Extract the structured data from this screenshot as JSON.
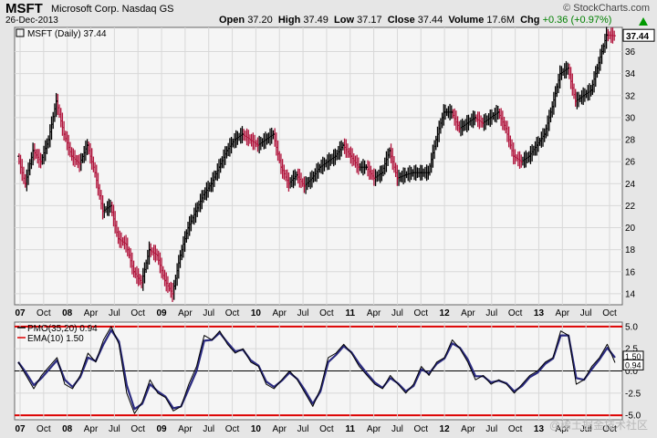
{
  "header": {
    "symbol": "MSFT",
    "company": "Microsoft Corp. Nasdaq GS",
    "date": "26-Dec-2013",
    "brand": "© StockCharts.com",
    "open_label": "Open",
    "open": "37.20",
    "high_label": "High",
    "high": "37.49",
    "low_label": "Low",
    "low": "37.17",
    "close_label": "Close",
    "close": "37.44",
    "volume_label": "Volume",
    "volume": "17.6M",
    "chg_label": "Chg",
    "chg": "+0.36 (+0.97%)"
  },
  "watermark": "@稀土掘金技术社区",
  "colors": {
    "up": "#000000",
    "down": "#b0143c",
    "pmo": "#000000",
    "signal": "#2a2a80",
    "ref": "#dd0000",
    "last_label_bg": "#ffffff"
  },
  "chart_data": [
    {
      "type": "line",
      "title": "MSFT (Daily) 37.44",
      "ylabel": "",
      "ylim": [
        13,
        38.2
      ],
      "ticks_y": [
        14,
        16,
        18,
        20,
        22,
        24,
        26,
        28,
        30,
        32,
        34,
        36
      ],
      "x_tick_labels": [
        "07",
        "Oct",
        "08",
        "Apr",
        "Jul",
        "Oct",
        "09",
        "Apr",
        "Jul",
        "Oct",
        "10",
        "Apr",
        "Jul",
        "Oct",
        "11",
        "Apr",
        "Jul",
        "Oct",
        "12",
        "Apr",
        "Jul",
        "Oct",
        "13",
        "Apr",
        "Jul",
        "Oct"
      ],
      "last_value_label": "37.44",
      "series": [
        {
          "x": [
            "2007-07",
            "2007-08",
            "2007-09",
            "2007-10",
            "2007-11",
            "2007-12",
            "2008-01",
            "2008-02",
            "2008-03",
            "2008-04",
            "2008-05",
            "2008-06",
            "2008-07",
            "2008-08",
            "2008-09",
            "2008-10",
            "2008-11",
            "2008-12",
            "2009-01",
            "2009-02",
            "2009-03",
            "2009-04",
            "2009-05",
            "2009-06",
            "2009-07",
            "2009-08",
            "2009-09",
            "2009-10",
            "2009-11",
            "2009-12",
            "2010-01",
            "2010-02",
            "2010-03",
            "2010-04",
            "2010-05",
            "2010-06",
            "2010-07",
            "2010-08",
            "2010-09",
            "2010-10",
            "2010-11",
            "2010-12",
            "2011-01",
            "2011-02",
            "2011-03",
            "2011-04",
            "2011-05",
            "2011-06",
            "2011-07",
            "2011-08",
            "2011-09",
            "2011-10",
            "2011-11",
            "2011-12",
            "2012-01",
            "2012-02",
            "2012-03",
            "2012-04",
            "2012-05",
            "2012-06",
            "2012-07",
            "2012-08",
            "2012-09",
            "2012-10",
            "2012-11",
            "2012-12",
            "2013-01",
            "2013-02",
            "2013-03",
            "2013-04",
            "2013-05",
            "2013-06",
            "2013-07",
            "2013-08",
            "2013-09",
            "2013-10",
            "2013-11",
            "2013-12"
          ],
          "values": [
            26.5,
            24.0,
            27.0,
            26.0,
            28.0,
            31.5,
            28.5,
            26.5,
            25.8,
            27.5,
            25.0,
            21.5,
            22.0,
            19.0,
            18.5,
            16.0,
            15.0,
            18.0,
            17.5,
            15.2,
            14.0,
            17.5,
            20.0,
            21.5,
            23.0,
            24.0,
            25.5,
            27.0,
            28.0,
            28.5,
            28.0,
            27.5,
            28.0,
            28.5,
            25.5,
            24.0,
            24.8,
            23.8,
            24.5,
            25.5,
            26.0,
            26.5,
            27.5,
            26.5,
            25.5,
            25.5,
            24.5,
            25.0,
            27.0,
            24.5,
            24.8,
            25.0,
            25.0,
            25.0,
            28.0,
            30.5,
            30.5,
            29.0,
            29.5,
            30.0,
            29.5,
            30.0,
            30.5,
            29.0,
            26.5,
            26.0,
            26.5,
            27.5,
            28.5,
            31.0,
            34.0,
            34.5,
            31.5,
            32.0,
            32.5,
            35.0,
            37.5,
            37.44
          ]
        }
      ]
    },
    {
      "type": "line",
      "title": "PMO(35,20) 0.94",
      "ylim": [
        -5.5,
        5.5
      ],
      "ticks_y": [
        -5.0,
        -2.5,
        0.0,
        2.5,
        5.0
      ],
      "ref_lines": [
        5.0,
        0.0,
        -5.0
      ],
      "x_tick_labels": [
        "07",
        "Oct",
        "08",
        "Apr",
        "Jul",
        "Oct",
        "09",
        "Apr",
        "Jul",
        "Oct",
        "10",
        "Apr",
        "Jul",
        "Oct",
        "11",
        "Apr",
        "Jul",
        "Oct",
        "12",
        "Apr",
        "Jul",
        "Oct",
        "13",
        "Apr",
        "Jul",
        "Oct"
      ],
      "last_value_labels": [
        "1.50",
        "0.94"
      ],
      "series": [
        {
          "name": "PMO(35,20) 0.94",
          "values": [
            1.0,
            -0.5,
            -2.0,
            -0.5,
            0.5,
            1.5,
            -1.5,
            -2.0,
            -0.5,
            2.0,
            1.0,
            3.5,
            5.0,
            3.0,
            -2.5,
            -4.8,
            -3.5,
            -1.0,
            -2.5,
            -3.0,
            -4.5,
            -4.0,
            -1.5,
            0.5,
            4.0,
            3.5,
            4.5,
            3.0,
            2.0,
            2.5,
            1.0,
            0.5,
            -1.5,
            -2.0,
            -1.0,
            0.0,
            -1.0,
            -2.5,
            -4.0,
            -2.0,
            1.5,
            2.0,
            3.0,
            2.0,
            0.5,
            -0.5,
            -1.5,
            -2.0,
            -0.5,
            -1.5,
            -2.5,
            -1.5,
            0.5,
            -0.5,
            1.0,
            1.5,
            3.5,
            2.5,
            1.0,
            -1.0,
            -0.5,
            -1.5,
            -1.0,
            -1.5,
            -2.5,
            -1.5,
            -0.5,
            0.0,
            1.0,
            1.5,
            4.5,
            4.0,
            -1.5,
            -1.0,
            0.5,
            1.5,
            3.0,
            0.94
          ]
        },
        {
          "name": "EMA(10) 1.50",
          "values": [
            1.0,
            -0.2,
            -1.6,
            -0.8,
            0.2,
            1.2,
            -1.0,
            -1.8,
            -0.7,
            1.5,
            1.1,
            3.0,
            4.6,
            3.3,
            -1.6,
            -4.3,
            -3.7,
            -1.5,
            -2.3,
            -2.9,
            -4.2,
            -4.0,
            -2.0,
            0.0,
            3.4,
            3.5,
            4.3,
            3.2,
            2.2,
            2.4,
            1.2,
            0.6,
            -1.2,
            -1.8,
            -1.1,
            -0.2,
            -0.9,
            -2.2,
            -3.7,
            -2.3,
            1.0,
            1.8,
            2.8,
            2.1,
            0.8,
            -0.3,
            -1.3,
            -1.9,
            -0.8,
            -1.4,
            -2.3,
            -1.7,
            0.2,
            -0.3,
            0.8,
            1.4,
            3.1,
            2.6,
            1.3,
            -0.6,
            -0.6,
            -1.3,
            -1.1,
            -1.4,
            -2.3,
            -1.7,
            -0.7,
            -0.2,
            0.8,
            1.4,
            4.0,
            4.0,
            -0.8,
            -1.0,
            0.2,
            1.3,
            2.6,
            1.5
          ]
        }
      ]
    }
  ]
}
